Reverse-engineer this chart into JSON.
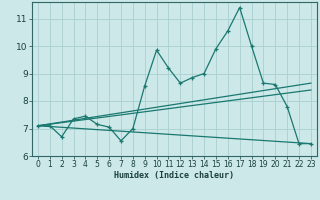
{
  "xlabel": "Humidex (Indice chaleur)",
  "background_color": "#cce8e8",
  "grid_color": "#aacfcf",
  "line_color": "#1a7870",
  "xlim": [
    -0.5,
    23.5
  ],
  "ylim": [
    6.0,
    11.6
  ],
  "yticks": [
    6,
    7,
    8,
    9,
    10,
    11
  ],
  "xticks": [
    0,
    1,
    2,
    3,
    4,
    5,
    6,
    7,
    8,
    9,
    10,
    11,
    12,
    13,
    14,
    15,
    16,
    17,
    18,
    19,
    20,
    21,
    22,
    23
  ],
  "line1_x": [
    0,
    1,
    2,
    3,
    4,
    5,
    6,
    7,
    8,
    9,
    10,
    11,
    12,
    13,
    14,
    15,
    16,
    17,
    18,
    19,
    20,
    21,
    22,
    23
  ],
  "line1_y": [
    7.1,
    7.1,
    6.7,
    7.35,
    7.45,
    7.15,
    7.05,
    6.55,
    7.0,
    8.55,
    9.85,
    9.2,
    8.65,
    8.85,
    9.0,
    9.9,
    10.55,
    11.4,
    10.0,
    8.65,
    8.6,
    7.8,
    6.45,
    6.45
  ],
  "line2_x": [
    0,
    23
  ],
  "line2_y": [
    7.1,
    8.65
  ],
  "line3_x": [
    0,
    23
  ],
  "line3_y": [
    7.1,
    8.4
  ],
  "line4_x": [
    0,
    23
  ],
  "line4_y": [
    7.1,
    6.45
  ]
}
